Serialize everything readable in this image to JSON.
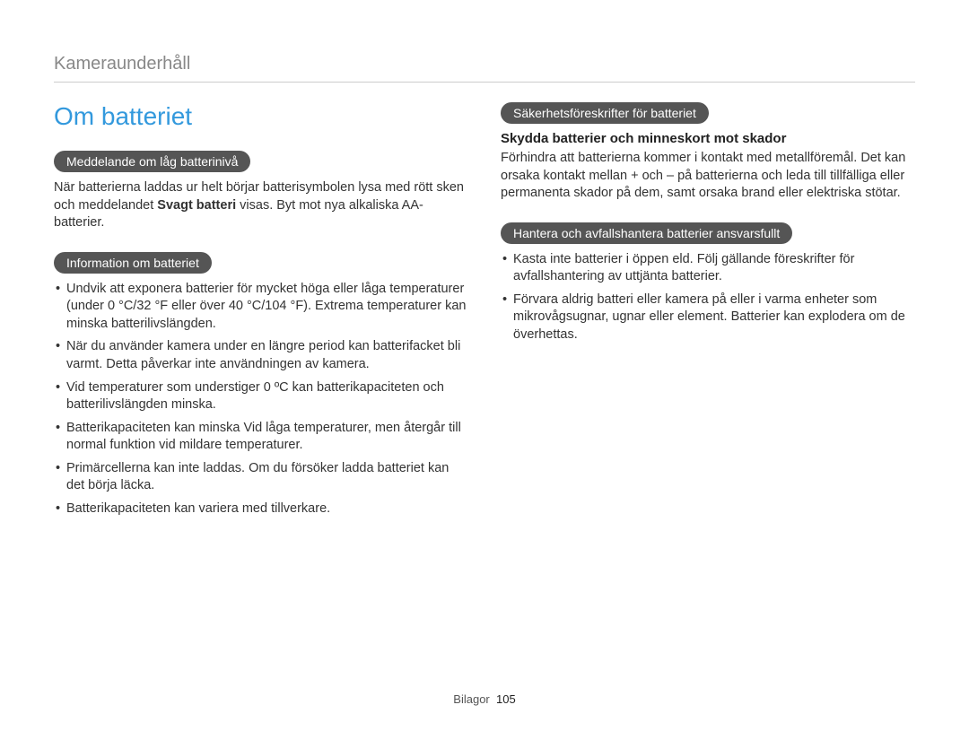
{
  "header": {
    "section_title": "Kameraunderhåll"
  },
  "left": {
    "main_title": "Om batteriet",
    "pill1": "Meddelande om låg batterinivå",
    "para1_pre": "När batterierna laddas ur helt börjar batterisymbolen lysa med rött sken och meddelandet ",
    "para1_bold": "Svagt batteri",
    "para1_post": " visas. Byt mot nya alkaliska AA-batterier.",
    "pill2": "Information om batteriet",
    "bullets": [
      "Undvik att exponera batterier för mycket höga eller låga temperaturer (under 0 °C/32 °F eller över 40 °C/104 °F). Extrema temperaturer kan minska batterilivslängden.",
      "När du använder kamera under en längre period kan batterifacket bli varmt. Detta påverkar inte användningen av kamera.",
      "Vid temperaturer som understiger 0 ºC kan batterikapaciteten och batterilivslängden minska.",
      "Batterikapaciteten kan minska Vid låga temperaturer, men återgår till normal funktion vid mildare temperaturer.",
      "Primärcellerna kan inte laddas. Om du försöker ladda batteriet kan det börja läcka.",
      "Batterikapaciteten kan variera med tillverkare."
    ]
  },
  "right": {
    "pill1": "Säkerhetsföreskrifter för batteriet",
    "subtitle1": "Skydda batterier och minneskort mot skador",
    "para1": "Förhindra att batterierna kommer i kontakt med metallföremål. Det kan orsaka kontakt mellan + och – på batterierna och leda till tillfälliga eller permanenta skador på dem, samt orsaka brand eller elektriska stötar.",
    "pill2": "Hantera och avfallshantera batterier ansvarsfullt",
    "bullets": [
      "Kasta inte batterier i öppen eld. Följ gällande föreskrifter för avfallshantering av uttjänta batterier.",
      "Förvara aldrig batteri eller kamera på eller i varma enheter som mikrovågsugnar, ugnar eller element. Batterier kan explodera om de överhettas."
    ]
  },
  "footer": {
    "label": "Bilagor",
    "page": "105"
  },
  "colors": {
    "title_blue": "#3399dd",
    "pill_bg": "#555555",
    "header_gray": "#888888",
    "rule": "#cccccc",
    "text": "#333333",
    "background": "#ffffff"
  }
}
